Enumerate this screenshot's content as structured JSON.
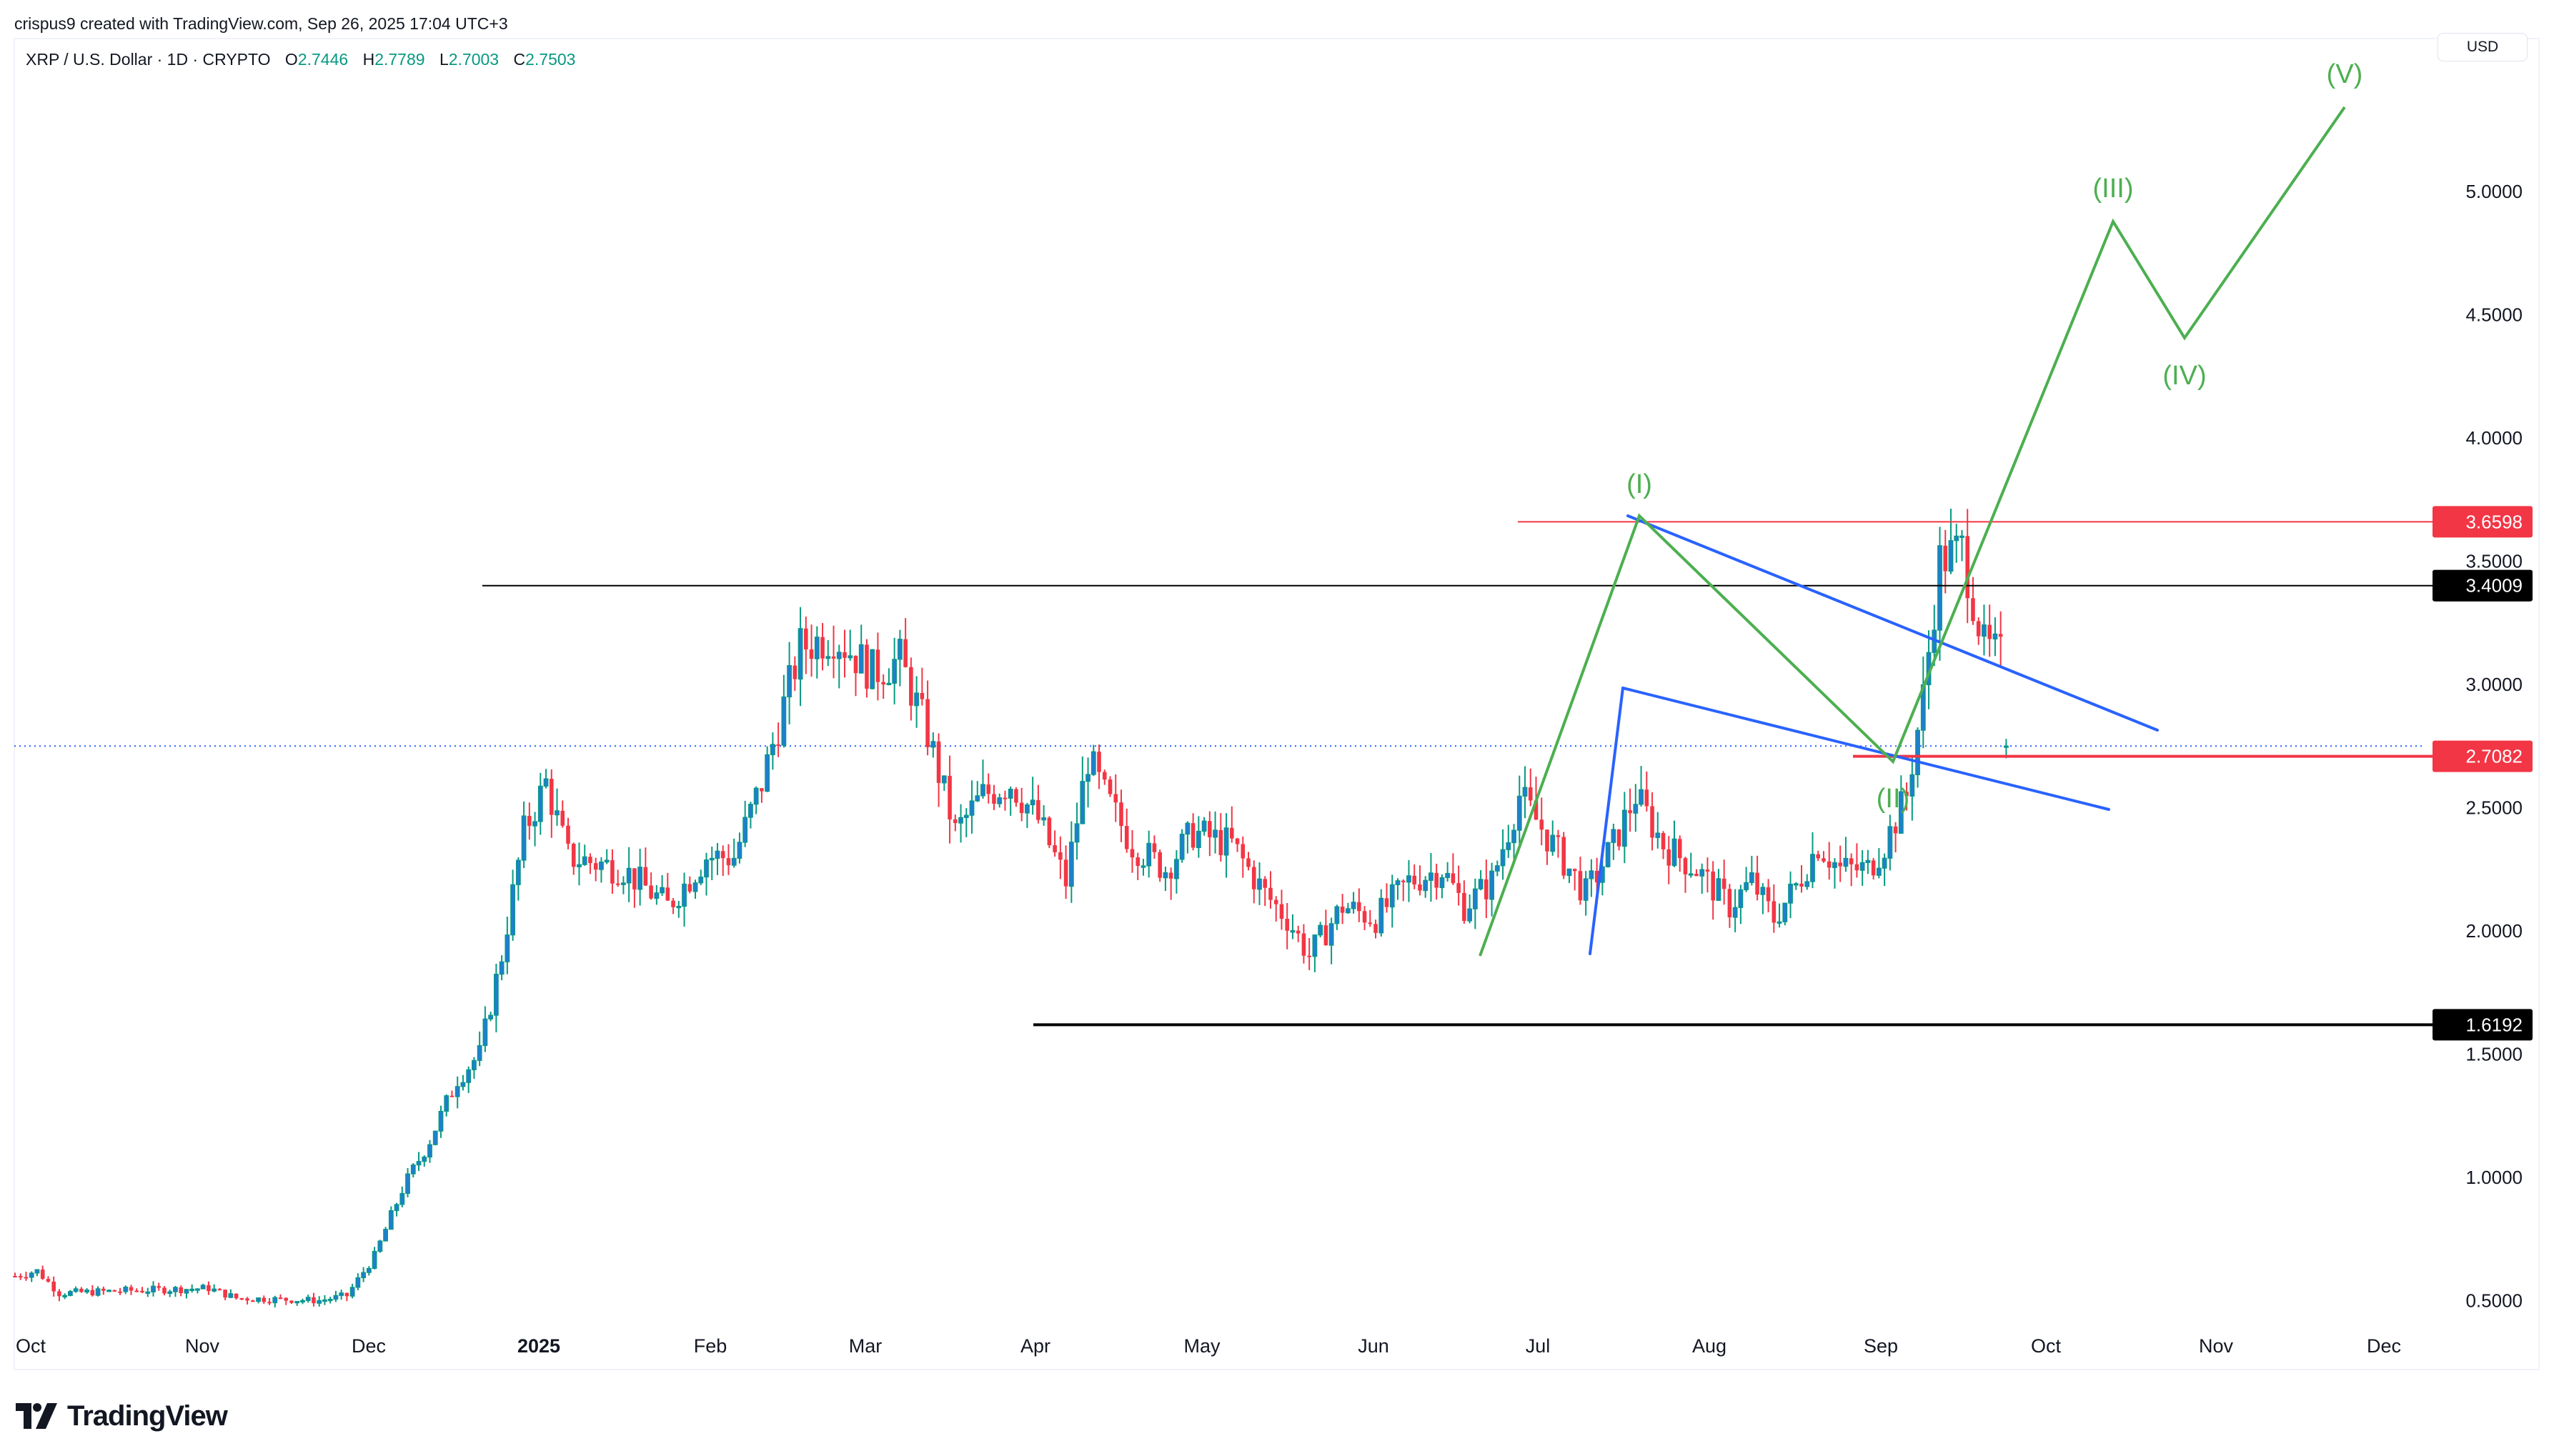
{
  "header": {
    "credit": "crispus9 created with TradingView.com, Sep 26, 2025 17:04 UTC+3"
  },
  "legend": {
    "symbol": "XRP / U.S. Dollar · 1D · CRYPTO",
    "open_label": "O",
    "open": "2.7446",
    "high_label": "H",
    "high": "2.7789",
    "low_label": "L",
    "low": "2.7003",
    "close_label": "C",
    "close": "2.7503"
  },
  "currency_button": "USD",
  "logo": {
    "text": "TradingView"
  },
  "colors": {
    "bull_body": "#1e7fd0",
    "bull_border": "#089981",
    "bear": "#f23645",
    "wave": "#4caf50",
    "channel": "#2962ff",
    "support": "#000000",
    "resistance_red": "#f23645",
    "price_line": "#2962ff"
  },
  "chart_data": {
    "type": "candlestick",
    "title": "XRP / U.S. Dollar · 1D · CRYPTO",
    "xlabel": "",
    "ylabel": "USD",
    "ylim": [
      0.35,
      5.6
    ],
    "x_ticks": [
      "Oct",
      "Nov",
      "Dec",
      "2025",
      "Feb",
      "Mar",
      "Apr",
      "May",
      "Jun",
      "Jul",
      "Aug",
      "Sep",
      "Oct",
      "Nov",
      "Dec"
    ],
    "y_ticks": [
      "5.0000",
      "4.5000",
      "4.0000",
      "3.5000",
      "3.0000",
      "2.5000",
      "2.0000",
      "1.5000",
      "1.0000",
      "0.5000"
    ],
    "last_ohlc": {
      "open": 2.7446,
      "high": 2.7789,
      "low": 2.7003,
      "close": 2.7503
    },
    "horizontal_levels": [
      {
        "price": 3.6598,
        "label": "3.6598",
        "color": "#f23645",
        "start": "2025-07-18"
      },
      {
        "price": 3.4009,
        "label": "3.4009",
        "color": "#000000",
        "start": "2024-12-21"
      },
      {
        "price": 2.7082,
        "label": "2.7082",
        "color": "#f23645",
        "start": "2025-08-26"
      },
      {
        "price": 1.6192,
        "label": "1.6192",
        "color": "#000000",
        "start": "2025-04-01"
      }
    ],
    "current_price_line": 2.75,
    "elliott_wave": [
      {
        "label": "",
        "day": 264,
        "price": 1.91
      },
      {
        "label": "(I)",
        "day": 293,
        "price": 3.65
      },
      {
        "label": "(II)",
        "day": 336,
        "price": 2.7
      },
      {
        "label": "(III)",
        "day": 376,
        "price": 4.88
      },
      {
        "label": "(IV)",
        "day": 389,
        "price": 4.41
      },
      {
        "label": "(V)",
        "day": 418,
        "price": 5.34
      }
    ],
    "channel": {
      "upper": [
        {
          "day": 289,
          "price": 3.65
        },
        {
          "day": 384,
          "price": 2.79
        }
      ],
      "lower": [
        {
          "day": 288,
          "price": 2.96
        },
        {
          "day": 375,
          "price": 2.48
        }
      ],
      "spike": [
        {
          "day": 282,
          "price": 1.92
        },
        {
          "day": 288,
          "price": 2.96
        }
      ]
    },
    "price_path_anchors": [
      [
        0,
        0.6
      ],
      [
        4,
        0.62
      ],
      [
        8,
        0.53
      ],
      [
        20,
        0.54
      ],
      [
        35,
        0.55
      ],
      [
        40,
        0.51
      ],
      [
        55,
        0.5
      ],
      [
        60,
        0.52
      ],
      [
        65,
        0.68
      ],
      [
        70,
        0.95
      ],
      [
        75,
        1.15
      ],
      [
        80,
        1.4
      ],
      [
        84,
        1.5
      ],
      [
        88,
        1.9
      ],
      [
        92,
        2.4
      ],
      [
        96,
        2.6
      ],
      [
        100,
        2.3
      ],
      [
        110,
        2.25
      ],
      [
        118,
        2.1
      ],
      [
        125,
        2.3
      ],
      [
        130,
        2.3
      ],
      [
        135,
        2.6
      ],
      [
        142,
        3.15
      ],
      [
        148,
        3.2
      ],
      [
        155,
        3.05
      ],
      [
        160,
        3.1
      ],
      [
        165,
        2.8
      ],
      [
        170,
        2.4
      ],
      [
        175,
        2.55
      ],
      [
        180,
        2.6
      ],
      [
        185,
        2.45
      ],
      [
        190,
        2.2
      ],
      [
        194,
        2.7
      ],
      [
        197,
        2.55
      ],
      [
        202,
        2.35
      ],
      [
        208,
        2.25
      ],
      [
        213,
        2.4
      ],
      [
        220,
        2.35
      ],
      [
        226,
        2.15
      ],
      [
        230,
        2.05
      ],
      [
        234,
        1.9
      ],
      [
        240,
        2.1
      ],
      [
        246,
        2.05
      ],
      [
        252,
        2.2
      ],
      [
        258,
        2.25
      ],
      [
        262,
        2.1
      ],
      [
        267,
        2.2
      ],
      [
        272,
        2.55
      ],
      [
        278,
        2.35
      ],
      [
        284,
        2.15
      ],
      [
        289,
        2.35
      ],
      [
        293,
        2.55
      ],
      [
        298,
        2.35
      ],
      [
        304,
        2.25
      ],
      [
        310,
        2.1
      ],
      [
        314,
        2.2
      ],
      [
        318,
        2.05
      ],
      [
        322,
        2.18
      ],
      [
        326,
        2.35
      ],
      [
        330,
        2.25
      ],
      [
        335,
        2.25
      ],
      [
        338,
        2.35
      ],
      [
        342,
        2.55
      ],
      [
        345,
        2.95
      ],
      [
        348,
        3.5
      ],
      [
        352,
        3.55
      ],
      [
        356,
        3.15
      ],
      [
        360,
        3.1
      ]
    ]
  }
}
